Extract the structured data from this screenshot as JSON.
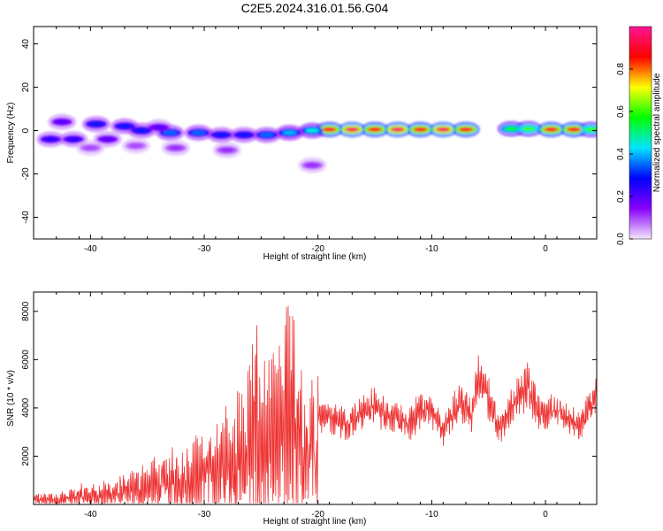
{
  "title": "C2E5.2024.316.01.56.G04",
  "chart_data": [
    {
      "type": "heatmap",
      "xlabel": "Height of straight line (km)",
      "ylabel": "Frequency (Hz)",
      "xlim": [
        -45,
        4.5
      ],
      "ylim": [
        -50,
        48
      ],
      "x_ticks": [
        -40,
        -30,
        -20,
        -10,
        0
      ],
      "y_ticks": [
        -40,
        -20,
        0,
        20,
        40
      ],
      "x_tick_labels": [
        "-40",
        "-30",
        "-20",
        "-10",
        "0"
      ],
      "y_tick_labels": [
        "-40",
        "-20",
        "0",
        "20",
        "40"
      ],
      "colorbar": {
        "label": "Normalized spectral amplitude",
        "range": [
          0,
          1
        ],
        "ticks": [
          0,
          0.2,
          0.4,
          0.6,
          0.8
        ],
        "tick_labels": [
          "0.0",
          "0.2",
          "0.4",
          "0.6",
          "0.8"
        ],
        "colors": [
          "#f4e6fa",
          "#8800ff",
          "#0000ff",
          "#00e5ff",
          "#00ff00",
          "#ffff00",
          "#ff0000",
          "#ff1493"
        ]
      },
      "blobs": [
        {
          "x": -19,
          "y": 0.5,
          "v": 0.9
        },
        {
          "x": -17,
          "y": 0.5,
          "v": 0.95
        },
        {
          "x": -15,
          "y": 0.5,
          "v": 0.9
        },
        {
          "x": -13,
          "y": 0.5,
          "v": 0.95
        },
        {
          "x": -11,
          "y": 0.5,
          "v": 0.9
        },
        {
          "x": -9,
          "y": 0.5,
          "v": 0.95
        },
        {
          "x": -7,
          "y": 0.5,
          "v": 0.9
        },
        {
          "x": -3,
          "y": 0.8,
          "v": 0.55
        },
        {
          "x": -1.5,
          "y": 0.8,
          "v": 0.6
        },
        {
          "x": 0.5,
          "y": 0.5,
          "v": 0.9
        },
        {
          "x": 2.5,
          "y": 0.5,
          "v": 0.9
        },
        {
          "x": 4,
          "y": 0.5,
          "v": 0.6
        },
        {
          "x": -20.5,
          "y": 0,
          "v": 0.45
        },
        {
          "x": -22.5,
          "y": -1,
          "v": 0.4
        },
        {
          "x": -24.5,
          "y": -2,
          "v": 0.35
        },
        {
          "x": -26.5,
          "y": -2,
          "v": 0.3
        },
        {
          "x": -28.5,
          "y": -2,
          "v": 0.3
        },
        {
          "x": -30.5,
          "y": -1,
          "v": 0.35
        },
        {
          "x": -33,
          "y": -1,
          "v": 0.35
        },
        {
          "x": -35.5,
          "y": 0,
          "v": 0.3
        },
        {
          "x": -37,
          "y": 2,
          "v": 0.3
        },
        {
          "x": -39.5,
          "y": 3,
          "v": 0.3
        },
        {
          "x": -41.5,
          "y": -4,
          "v": 0.25
        },
        {
          "x": -43.5,
          "y": -4,
          "v": 0.25
        },
        {
          "x": -42.5,
          "y": 4,
          "v": 0.2
        },
        {
          "x": -38.5,
          "y": -4,
          "v": 0.2
        },
        {
          "x": -34,
          "y": 1.5,
          "v": 0.2
        },
        {
          "x": -32.5,
          "y": -8,
          "v": 0.12
        },
        {
          "x": -28,
          "y": -9,
          "v": 0.12
        },
        {
          "x": -20.5,
          "y": -16,
          "v": 0.12
        },
        {
          "x": -36,
          "y": -7,
          "v": 0.1
        },
        {
          "x": -40,
          "y": -8,
          "v": 0.1
        }
      ]
    },
    {
      "type": "line",
      "xlabel": "Height of straight line (km)",
      "ylabel": "SNR (10 * v/v)",
      "xlim": [
        -45,
        4.5
      ],
      "ylim": [
        0,
        8800
      ],
      "x_ticks": [
        -40,
        -30,
        -20,
        -10,
        0
      ],
      "y_ticks": [
        2000,
        4000,
        6000,
        8000
      ],
      "x_tick_labels": [
        "-40",
        "-30",
        "-20",
        "-10",
        "0"
      ],
      "y_tick_labels": [
        "2000",
        "4000",
        "6000",
        "8000"
      ],
      "line_color": "#ee3333",
      "envelope": {
        "x": [
          -45,
          -43,
          -41,
          -39,
          -37,
          -35,
          -33,
          -31,
          -29.5,
          -28,
          -26.5,
          -25.5,
          -24.5,
          -23,
          -22.5,
          -22,
          -21,
          -20,
          -19,
          -17.5,
          -16,
          -15,
          -13,
          -12,
          -11,
          -10,
          -9,
          -7.5,
          -6.5,
          -6,
          -5.5,
          -4,
          -3,
          -1.5,
          -0.5,
          0.5,
          2,
          3,
          4.5
        ],
        "y": [
          350,
          350,
          600,
          700,
          900,
          1300,
          1700,
          2000,
          2500,
          3000,
          3600,
          5500,
          4000,
          5000,
          8500,
          5000,
          3500,
          4200,
          4100,
          3700,
          4300,
          4500,
          3900,
          3600,
          4400,
          4300,
          3400,
          4800,
          4000,
          5700,
          5500,
          3500,
          4500,
          5500,
          4200,
          4300,
          4000,
          3600,
          5000
        ]
      }
    }
  ]
}
